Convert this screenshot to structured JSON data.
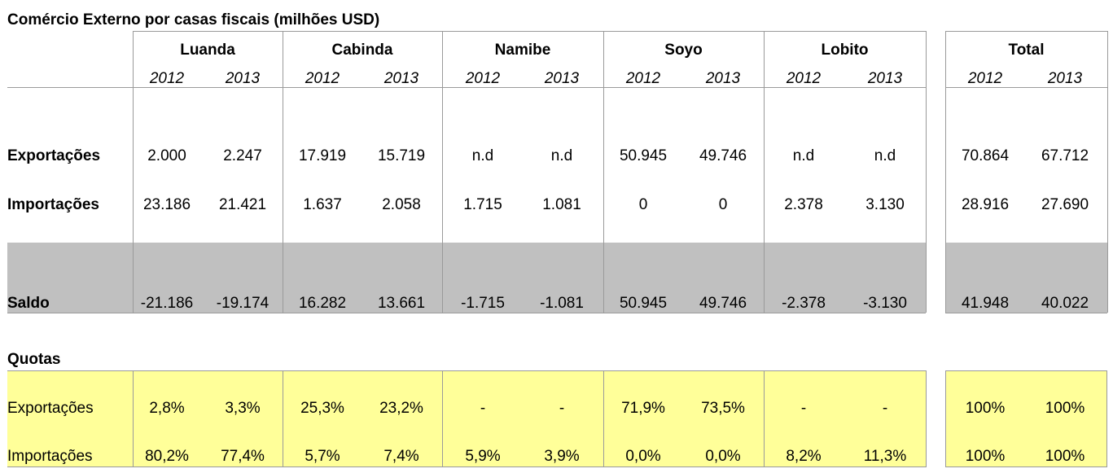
{
  "title": "Comércio Externo por casas fiscais (milhões USD)",
  "colors": {
    "saldo_band": "#c0c0c0",
    "quotas_band": "#ffff99",
    "grid": "#9a9a9a"
  },
  "groups": [
    "Luanda",
    "Cabinda",
    "Namibe",
    "Soyo",
    "Lobito",
    "Total"
  ],
  "years": [
    "2012",
    "2013"
  ],
  "rows": [
    {
      "label": "Exportações",
      "values": [
        "2.000",
        "2.247",
        "17.919",
        "15.719",
        "n.d",
        "n.d",
        "50.945",
        "49.746",
        "n.d",
        "n.d",
        "70.864",
        "67.712"
      ]
    },
    {
      "label": "Importações",
      "values": [
        "23.186",
        "21.421",
        "1.637",
        "2.058",
        "1.715",
        "1.081",
        "0",
        "0",
        "2.378",
        "3.130",
        "28.916",
        "27.690"
      ]
    },
    {
      "label": "Saldo",
      "values": [
        "-21.186",
        "-19.174",
        "16.282",
        "13.661",
        "-1.715",
        "-1.081",
        "50.945",
        "49.746",
        "-2.378",
        "-3.130",
        "41.948",
        "40.022"
      ]
    }
  ],
  "quotas": {
    "heading": "Quotas",
    "rows": [
      {
        "label": "Exportações",
        "values": [
          "2,8%",
          "3,3%",
          "25,3%",
          "23,2%",
          "-",
          "-",
          "71,9%",
          "73,5%",
          "-",
          "-",
          "100%",
          "100%"
        ]
      },
      {
        "label": "Importações",
        "values": [
          "80,2%",
          "77,4%",
          "5,7%",
          "7,4%",
          "5,9%",
          "3,9%",
          "0,0%",
          "0,0%",
          "8,2%",
          "11,3%",
          "100%",
          "100%"
        ]
      }
    ]
  }
}
